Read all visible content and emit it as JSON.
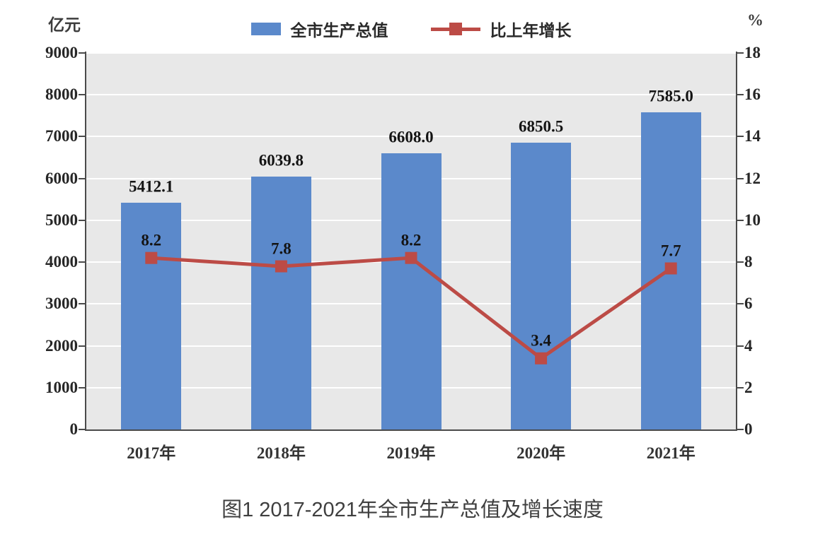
{
  "chart_data": {
    "type": "bar+line combo",
    "categories": [
      "2017年",
      "2018年",
      "2019年",
      "2020年",
      "2021年"
    ],
    "series": [
      {
        "name": "全市生产总值",
        "type": "bar",
        "axis": "left",
        "color": "#5b89cb",
        "values": [
          5412.1,
          6039.8,
          6608.0,
          6850.5,
          7585.0
        ],
        "labels": [
          "5412.1",
          "6039.8",
          "6608.0",
          "6850.5",
          "7585.0"
        ]
      },
      {
        "name": "比上年增长",
        "type": "line",
        "axis": "right",
        "color": "#bc4b46",
        "values": [
          8.2,
          7.8,
          8.2,
          3.4,
          7.7
        ],
        "labels": [
          "8.2",
          "7.8",
          "8.2",
          "3.4",
          "7.7"
        ]
      }
    ],
    "left_axis": {
      "label": "亿元",
      "min": 0,
      "max": 9000,
      "step": 1000,
      "ticks": [
        "0",
        "1000",
        "2000",
        "3000",
        "4000",
        "5000",
        "6000",
        "7000",
        "8000",
        "9000"
      ]
    },
    "right_axis": {
      "label": "%",
      "min": 0,
      "max": 18,
      "step": 2,
      "ticks": [
        "0",
        "2",
        "4",
        "6",
        "8",
        "10",
        "12",
        "14",
        "16",
        "18"
      ]
    },
    "legend": {
      "position": "top-center",
      "items": [
        {
          "label": "全市生产总值",
          "swatch": "bar",
          "color": "#5b89cb"
        },
        {
          "label": "比上年增长",
          "swatch": "line-marker",
          "color": "#bc4b46"
        }
      ]
    },
    "caption": "图1  2017-2021年全市生产总值及增长速度",
    "style": {
      "plot_background": "#e8e8e8",
      "gridline_color": "#ffffff",
      "gridlines": "horizontal",
      "axis_color": "#4a4a4a"
    }
  }
}
